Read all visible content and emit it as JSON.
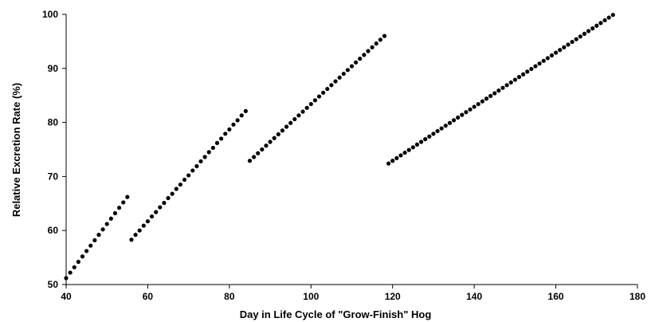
{
  "chart_data": {
    "type": "scatter",
    "xlabel": "Day in Life Cycle of \"Grow-Finish\" Hog",
    "ylabel": "Relative Excretion Rate (%)",
    "xlim": [
      40,
      180
    ],
    "ylim": [
      50,
      100
    ],
    "xticks": [
      40,
      60,
      80,
      100,
      120,
      140,
      160,
      180
    ],
    "yticks": [
      50,
      60,
      70,
      80,
      90,
      100
    ],
    "grid": false,
    "marker_color": "#000000",
    "series": [
      {
        "x": [
          40,
          41,
          42,
          43,
          44,
          45,
          46,
          47,
          48,
          49,
          50,
          51,
          52,
          53,
          54,
          55
        ],
        "y": [
          51.2,
          52.2,
          53.2,
          54.2,
          55.2,
          56.2,
          57.2,
          58.2,
          59.2,
          60.2,
          61.2,
          62.2,
          63.2,
          64.2,
          65.2,
          66.2
        ]
      },
      {
        "x": [
          56,
          57,
          58,
          59,
          60,
          61,
          62,
          63,
          64,
          65,
          66,
          67,
          68,
          69,
          70,
          71,
          72,
          73,
          74,
          75,
          76,
          77,
          78,
          79,
          80,
          81,
          82,
          83,
          84
        ],
        "y": [
          58.3,
          59.2,
          60.0,
          60.9,
          61.7,
          62.6,
          63.4,
          64.3,
          65.1,
          66.0,
          66.8,
          67.7,
          68.5,
          69.4,
          70.2,
          71.1,
          71.9,
          72.8,
          73.6,
          74.5,
          75.3,
          76.2,
          77.0,
          77.9,
          78.7,
          79.6,
          80.4,
          81.3,
          82.1
        ]
      },
      {
        "x": [
          85,
          86,
          87,
          88,
          89,
          90,
          91,
          92,
          93,
          94,
          95,
          96,
          97,
          98,
          99,
          100,
          101,
          102,
          103,
          104,
          105,
          106,
          107,
          108,
          109,
          110,
          111,
          112,
          113,
          114,
          115,
          116,
          117,
          118
        ],
        "y": [
          72.9,
          73.6,
          74.3,
          75.0,
          75.7,
          76.4,
          77.1,
          77.8,
          78.5,
          79.2,
          79.9,
          80.6,
          81.3,
          82.0,
          82.7,
          83.4,
          84.1,
          84.8,
          85.5,
          86.2,
          86.9,
          87.6,
          88.3,
          89.0,
          89.7,
          90.4,
          91.1,
          91.8,
          92.5,
          93.2,
          93.9,
          94.6,
          95.3,
          96.0
        ]
      },
      {
        "x": [
          119,
          120,
          121,
          122,
          123,
          124,
          125,
          126,
          127,
          128,
          129,
          130,
          131,
          132,
          133,
          134,
          135,
          136,
          137,
          138,
          139,
          140,
          141,
          142,
          143,
          144,
          145,
          146,
          147,
          148,
          149,
          150,
          151,
          152,
          153,
          154,
          155,
          156,
          157,
          158,
          159,
          160,
          161,
          162,
          163,
          164,
          165,
          166,
          167,
          168,
          169,
          170,
          171,
          172,
          173,
          174
        ],
        "y": [
          72.4,
          72.9,
          73.4,
          73.9,
          74.4,
          74.9,
          75.4,
          75.9,
          76.4,
          76.9,
          77.4,
          77.9,
          78.4,
          78.9,
          79.4,
          79.9,
          80.4,
          80.9,
          81.4,
          81.9,
          82.4,
          82.9,
          83.4,
          83.9,
          84.4,
          84.9,
          85.4,
          85.9,
          86.4,
          86.9,
          87.4,
          87.9,
          88.4,
          88.9,
          89.4,
          89.9,
          90.4,
          90.9,
          91.4,
          91.9,
          92.4,
          92.9,
          93.4,
          93.9,
          94.4,
          94.9,
          95.4,
          95.9,
          96.4,
          96.9,
          97.4,
          97.9,
          98.4,
          98.9,
          99.4,
          99.9
        ]
      }
    ]
  }
}
